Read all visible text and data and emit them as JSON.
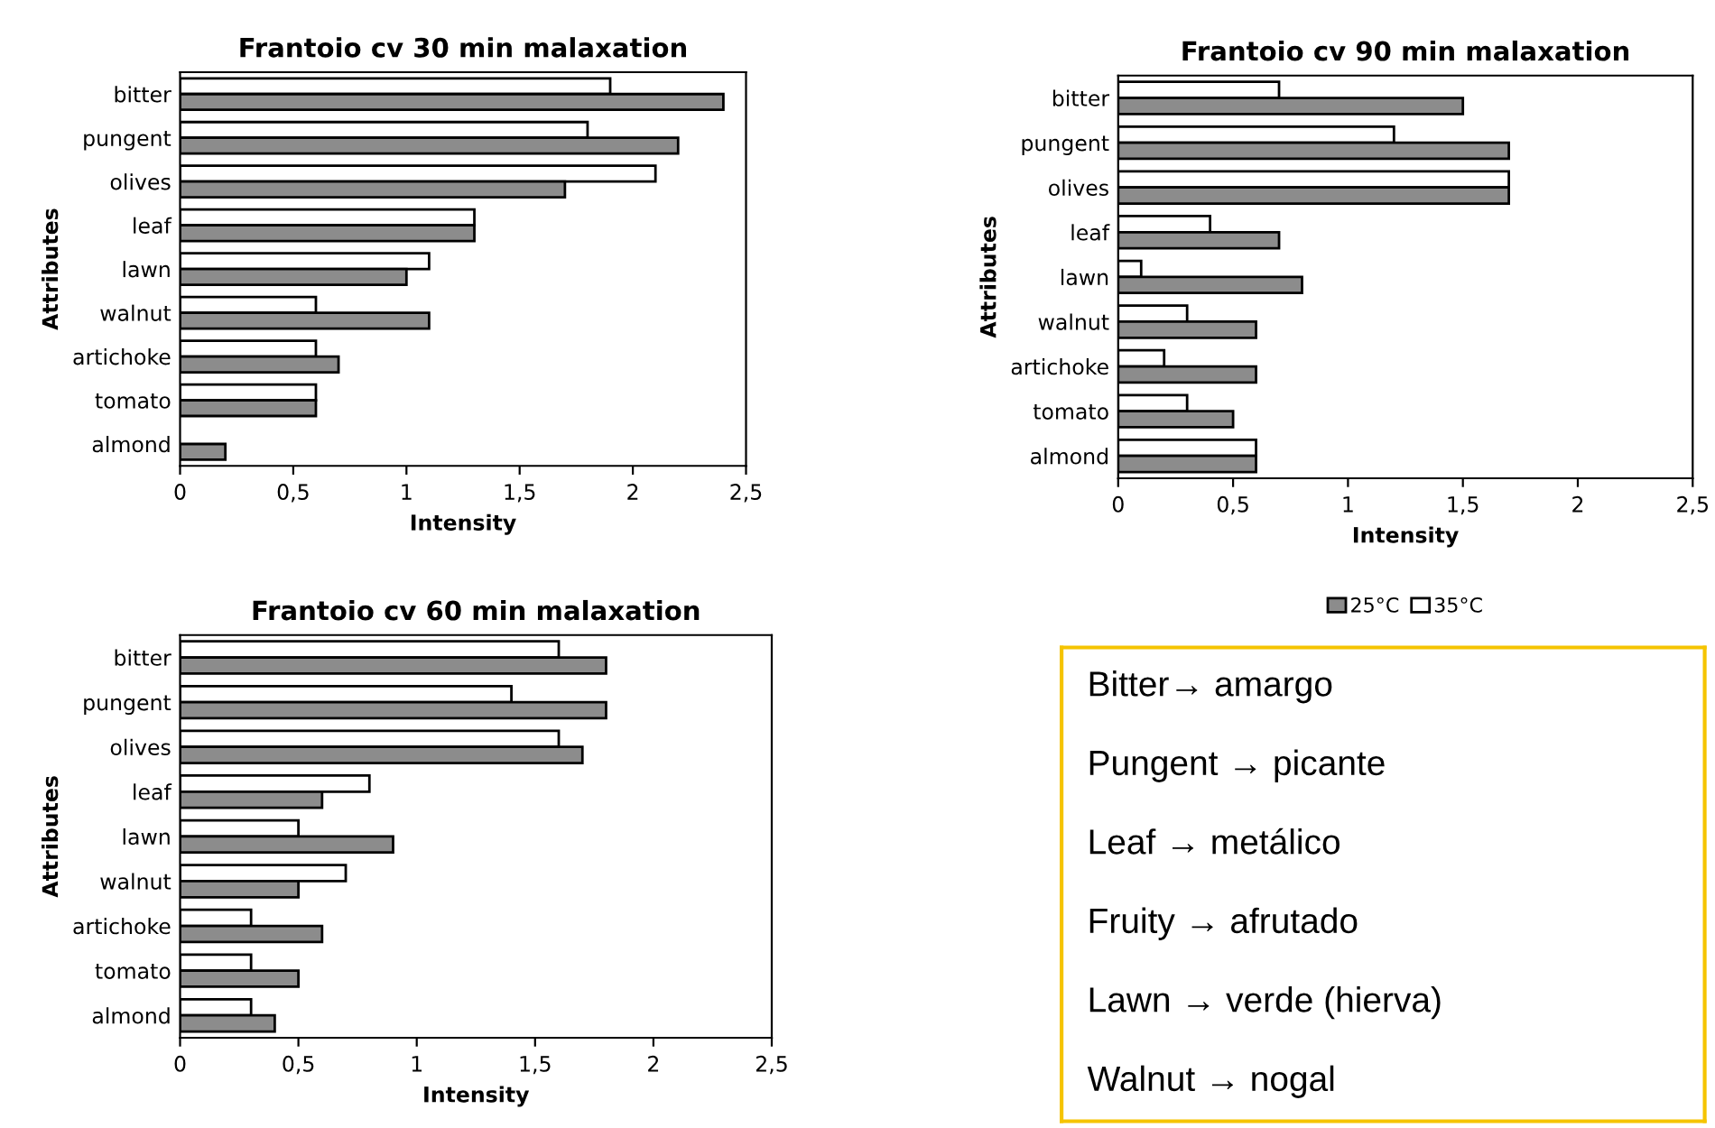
{
  "chart_data": [
    {
      "type": "bar",
      "orientation": "horizontal",
      "title": "Frantoio cv 30 min malaxation",
      "xlabel": "Intensity",
      "ylabel": "Attributes",
      "categories": [
        "bitter",
        "pungent",
        "olives",
        "leaf",
        "lawn",
        "walnut",
        "artichoke",
        "tomato",
        "almond"
      ],
      "series": [
        {
          "color": "#ffffff",
          "values": [
            1.9,
            1.8,
            2.1,
            1.3,
            1.1,
            0.6,
            0.6,
            0.6,
            null
          ]
        },
        {
          "color": "#8c8c8c",
          "values": [
            2.4,
            2.2,
            1.7,
            1.3,
            1.0,
            1.1,
            0.7,
            0.6,
            0.2
          ]
        }
      ],
      "xlim": [
        0,
        2.5
      ],
      "xticks": [
        0,
        {
          "value": 0.5,
          "label": "0,5"
        },
        1,
        {
          "value": 1.5,
          "label": "1,5"
        },
        2,
        {
          "value": 2.5,
          "label": "2,5"
        }
      ],
      "grid": false,
      "legend": false
    },
    {
      "type": "bar",
      "orientation": "horizontal",
      "title": "Frantoio cv 90 min malaxation",
      "xlabel": "Intensity",
      "ylabel": "Attributes",
      "categories": [
        "bitter",
        "pungent",
        "olives",
        "leaf",
        "lawn",
        "walnut",
        "artichoke",
        "tomato",
        "almond"
      ],
      "series": [
        {
          "name": "35°C",
          "color": "#ffffff",
          "values": [
            0.7,
            1.2,
            1.7,
            0.4,
            0.1,
            0.3,
            0.2,
            0.3,
            0.6
          ]
        },
        {
          "name": "25°C",
          "color": "#8c8c8c",
          "values": [
            1.5,
            1.7,
            1.7,
            0.7,
            0.8,
            0.6,
            0.6,
            0.5,
            0.6
          ]
        }
      ],
      "xlim": [
        0,
        2.5
      ],
      "xticks": [
        0,
        {
          "value": 0.5,
          "label": "0,5"
        },
        1,
        {
          "value": 1.5,
          "label": "1,5"
        },
        2,
        {
          "value": 2.5,
          "label": "2,5"
        }
      ],
      "grid": false,
      "legend": "bottom"
    },
    {
      "type": "bar",
      "orientation": "horizontal",
      "title": "Frantoio cv 60 min malaxation",
      "xlabel": "Intensity",
      "ylabel": "Attributes",
      "categories": [
        "bitter",
        "pungent",
        "olives",
        "leaf",
        "lawn",
        "walnut",
        "artichoke",
        "tomato",
        "almond"
      ],
      "series": [
        {
          "color": "#ffffff",
          "values": [
            1.6,
            1.4,
            1.6,
            0.8,
            0.5,
            0.7,
            0.3,
            0.3,
            0.3
          ]
        },
        {
          "color": "#8c8c8c",
          "values": [
            1.8,
            1.8,
            1.7,
            0.6,
            0.9,
            0.5,
            0.6,
            0.5,
            0.4
          ]
        }
      ],
      "xlim": [
        0,
        2.5
      ],
      "xticks": [
        0,
        {
          "value": 0.5,
          "label": "0,5"
        },
        1,
        {
          "value": 1.5,
          "label": "1,5"
        },
        2,
        {
          "value": 2.5,
          "label": "2,5"
        }
      ],
      "grid": false,
      "legend": false
    },
    {
      "type": "other",
      "annotations": [
        "Bitter→ amargo",
        "Pungent → picante",
        "Leaf → metálico",
        "Fruity → afrutado",
        "Lawn → verde (hierva)",
        "Walnut → nogal"
      ]
    }
  ]
}
